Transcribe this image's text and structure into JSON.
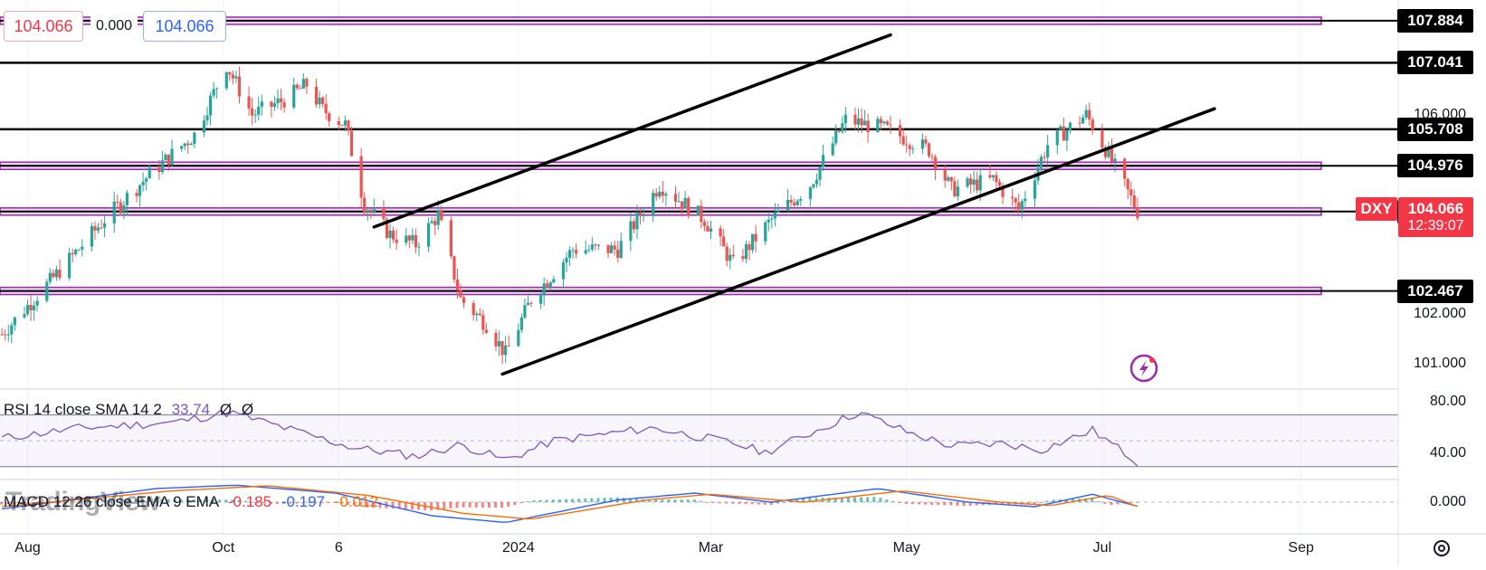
{
  "header": {
    "bid_value": "104.066",
    "spread_value": "0.000",
    "ask_value": "104.066"
  },
  "colors": {
    "up": "#26a69a",
    "down": "#ef5350",
    "support_band": "#9c27b0",
    "trendline": "#000000",
    "rsi_line": "#7e57c2",
    "macd_line": "#2962ff",
    "signal_line": "#ff6d00",
    "symbol_tag": "#f23645"
  },
  "chart_data": [
    {
      "type": "candlestick",
      "symbol": "DXY",
      "last_price": "104.066",
      "countdown": "12:39:07",
      "ylim": [
        100.5,
        108.3
      ],
      "y_ticks": [
        "106.000",
        "102.000",
        "101.000"
      ],
      "x_ticks": [
        "Aug",
        "Oct",
        "6",
        "2024",
        "Mar",
        "May",
        "Jul",
        "Sep"
      ],
      "horizontal_levels": [
        {
          "value": 107.884,
          "label": "107.884",
          "style": "band"
        },
        {
          "value": 107.041,
          "label": "107.041",
          "style": "line"
        },
        {
          "value": 105.708,
          "label": "105.708",
          "style": "line"
        },
        {
          "value": 104.976,
          "label": "104.976",
          "style": "band"
        },
        {
          "value": 104.059,
          "label": "104.059",
          "style": "band"
        },
        {
          "value": 102.467,
          "label": "102.467",
          "style": "band"
        }
      ],
      "channel_lines": [
        {
          "from": [
            "2023-11-17",
            103.75
          ],
          "to": [
            "2024-04-26",
            107.6
          ]
        },
        {
          "from": [
            "2023-12-27",
            100.8
          ],
          "to": [
            "2024-08-05",
            106.12
          ]
        }
      ],
      "path": [
        [
          "2023-07-24",
          101.6
        ],
        [
          "2023-08-10",
          102.8
        ],
        [
          "2023-08-25",
          103.9
        ],
        [
          "2023-09-08",
          104.8
        ],
        [
          "2023-09-22",
          105.6
        ],
        [
          "2023-10-02",
          107.0
        ],
        [
          "2023-10-10",
          106.0
        ],
        [
          "2023-10-20",
          106.3
        ],
        [
          "2023-10-27",
          106.6
        ],
        [
          "2023-11-01",
          106.1
        ],
        [
          "2023-11-08",
          105.8
        ],
        [
          "2023-11-14",
          104.2
        ],
        [
          "2023-11-22",
          103.6
        ],
        [
          "2023-11-30",
          103.4
        ],
        [
          "2023-12-07",
          104.0
        ],
        [
          "2023-12-14",
          102.3
        ],
        [
          "2023-12-22",
          101.8
        ],
        [
          "2023-12-28",
          101.2
        ],
        [
          "2024-01-05",
          102.3
        ],
        [
          "2024-01-18",
          103.3
        ],
        [
          "2024-02-01",
          103.3
        ],
        [
          "2024-02-14",
          104.6
        ],
        [
          "2024-02-28",
          103.9
        ],
        [
          "2024-03-08",
          103.0
        ],
        [
          "2024-03-20",
          103.9
        ],
        [
          "2024-04-01",
          104.6
        ],
        [
          "2024-04-12",
          105.9
        ],
        [
          "2024-04-25",
          105.7
        ],
        [
          "2024-05-08",
          105.3
        ],
        [
          "2024-05-15",
          104.5
        ],
        [
          "2024-05-28",
          104.7
        ],
        [
          "2024-06-05",
          104.1
        ],
        [
          "2024-06-14",
          105.4
        ],
        [
          "2024-06-26",
          106.0
        ],
        [
          "2024-07-03",
          105.2
        ],
        [
          "2024-07-12",
          104.066
        ]
      ]
    },
    {
      "type": "line",
      "indicator": "RSI",
      "label": "RSI 14 close SMA 14 2",
      "value": "33.74",
      "na_values": [
        "Ø",
        "Ø"
      ],
      "ylim": [
        20,
        90
      ],
      "y_ticks": [
        "80.00",
        "40.00"
      ],
      "path": [
        [
          "2023-07-24",
          52
        ],
        [
          "2023-08-18",
          60
        ],
        [
          "2023-09-15",
          64
        ],
        [
          "2023-10-03",
          72
        ],
        [
          "2023-10-20",
          60
        ],
        [
          "2023-11-10",
          45
        ],
        [
          "2023-11-30",
          38
        ],
        [
          "2023-12-14",
          47
        ],
        [
          "2023-12-28",
          35
        ],
        [
          "2024-01-12",
          50
        ],
        [
          "2024-02-12",
          60
        ],
        [
          "2024-03-08",
          48
        ],
        [
          "2024-03-18",
          41
        ],
        [
          "2024-04-16",
          72
        ],
        [
          "2024-05-02",
          56
        ],
        [
          "2024-05-15",
          46
        ],
        [
          "2024-05-31",
          48
        ],
        [
          "2024-06-12",
          43
        ],
        [
          "2024-06-28",
          58
        ],
        [
          "2024-07-12",
          33.74
        ]
      ]
    },
    {
      "type": "line",
      "indicator": "MACD",
      "label": "MACD 12 26 close EMA 9 EMA",
      "values": [
        "-0.185",
        "-0.197",
        "-0.012"
      ],
      "ylim": [
        -1.4,
        1.0
      ],
      "y_ticks": [
        "0.000"
      ],
      "series": [
        {
          "values": [
            [
              "2023-07-24",
              -0.3
            ],
            [
              "2023-09-10",
              0.6
            ],
            [
              "2023-10-05",
              0.75
            ],
            [
              "2023-11-05",
              0.4
            ],
            [
              "2023-12-05",
              -0.6
            ],
            [
              "2023-12-28",
              -0.9
            ],
            [
              "2024-02-01",
              0.1
            ],
            [
              "2024-02-25",
              0.4
            ],
            [
              "2024-03-20",
              0.0
            ],
            [
              "2024-04-22",
              0.6
            ],
            [
              "2024-05-20",
              0.0
            ],
            [
              "2024-06-10",
              -0.2
            ],
            [
              "2024-06-28",
              0.35
            ],
            [
              "2024-07-12",
              -0.185
            ]
          ]
        },
        {
          "values": [
            [
              "2023-07-24",
              -0.2
            ],
            [
              "2023-09-15",
              0.5
            ],
            [
              "2023-10-15",
              0.72
            ],
            [
              "2023-11-15",
              0.3
            ],
            [
              "2023-12-15",
              -0.5
            ],
            [
              "2024-01-05",
              -0.75
            ],
            [
              "2024-02-10",
              0.1
            ],
            [
              "2024-03-01",
              0.35
            ],
            [
              "2024-03-30",
              0.0
            ],
            [
              "2024-04-30",
              0.5
            ],
            [
              "2024-05-30",
              0.0
            ],
            [
              "2024-06-15",
              -0.15
            ],
            [
              "2024-07-03",
              0.3
            ],
            [
              "2024-07-12",
              -0.197
            ]
          ]
        }
      ]
    }
  ],
  "watermark": "TradingView",
  "settings_icon": "settings-icon",
  "alert_icon": "lightning-alert-icon"
}
